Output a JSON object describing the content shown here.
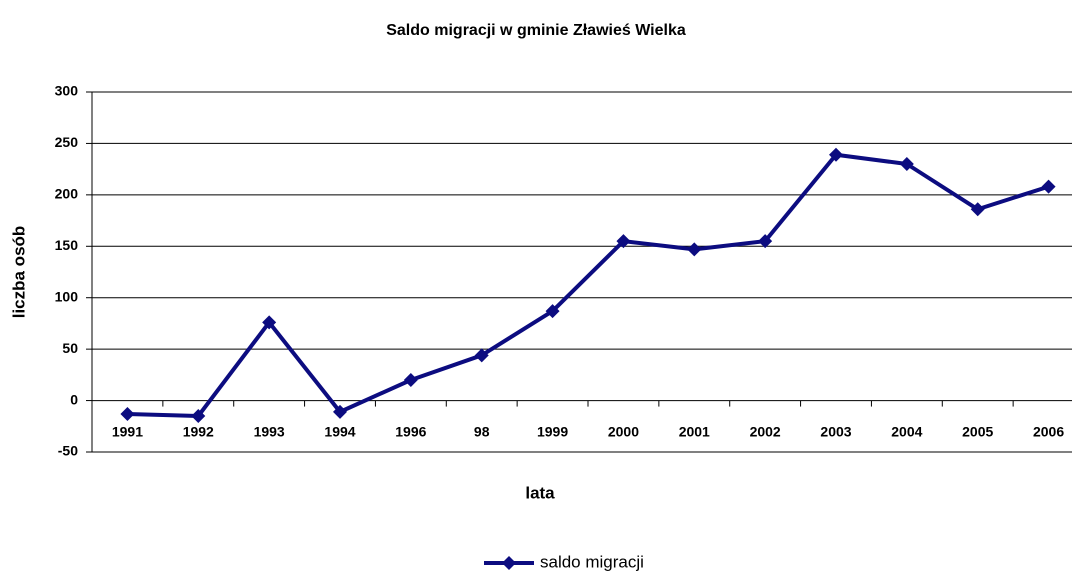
{
  "chart_data": {
    "type": "line",
    "title": "Saldo migracji w gminie Zławieś Wielka",
    "x_label": "lata",
    "y_label": "liczba osób",
    "categories": [
      "1991",
      "1992",
      "1993",
      "1994",
      "1996",
      "98",
      "1999",
      "2000",
      "2001",
      "2002",
      "2003",
      "2004",
      "2005",
      "2006"
    ],
    "series": [
      {
        "name": "saldo migracji",
        "color": "#0c0c80",
        "values": [
          -13,
          -15,
          76,
          -11,
          20,
          44,
          87,
          155,
          147,
          155,
          239,
          230,
          186,
          208
        ]
      }
    ],
    "ylim": [
      -50,
      300
    ],
    "yticks": [
      -50,
      0,
      50,
      100,
      150,
      200,
      250,
      300
    ],
    "grid": true,
    "legend": "bottom"
  }
}
